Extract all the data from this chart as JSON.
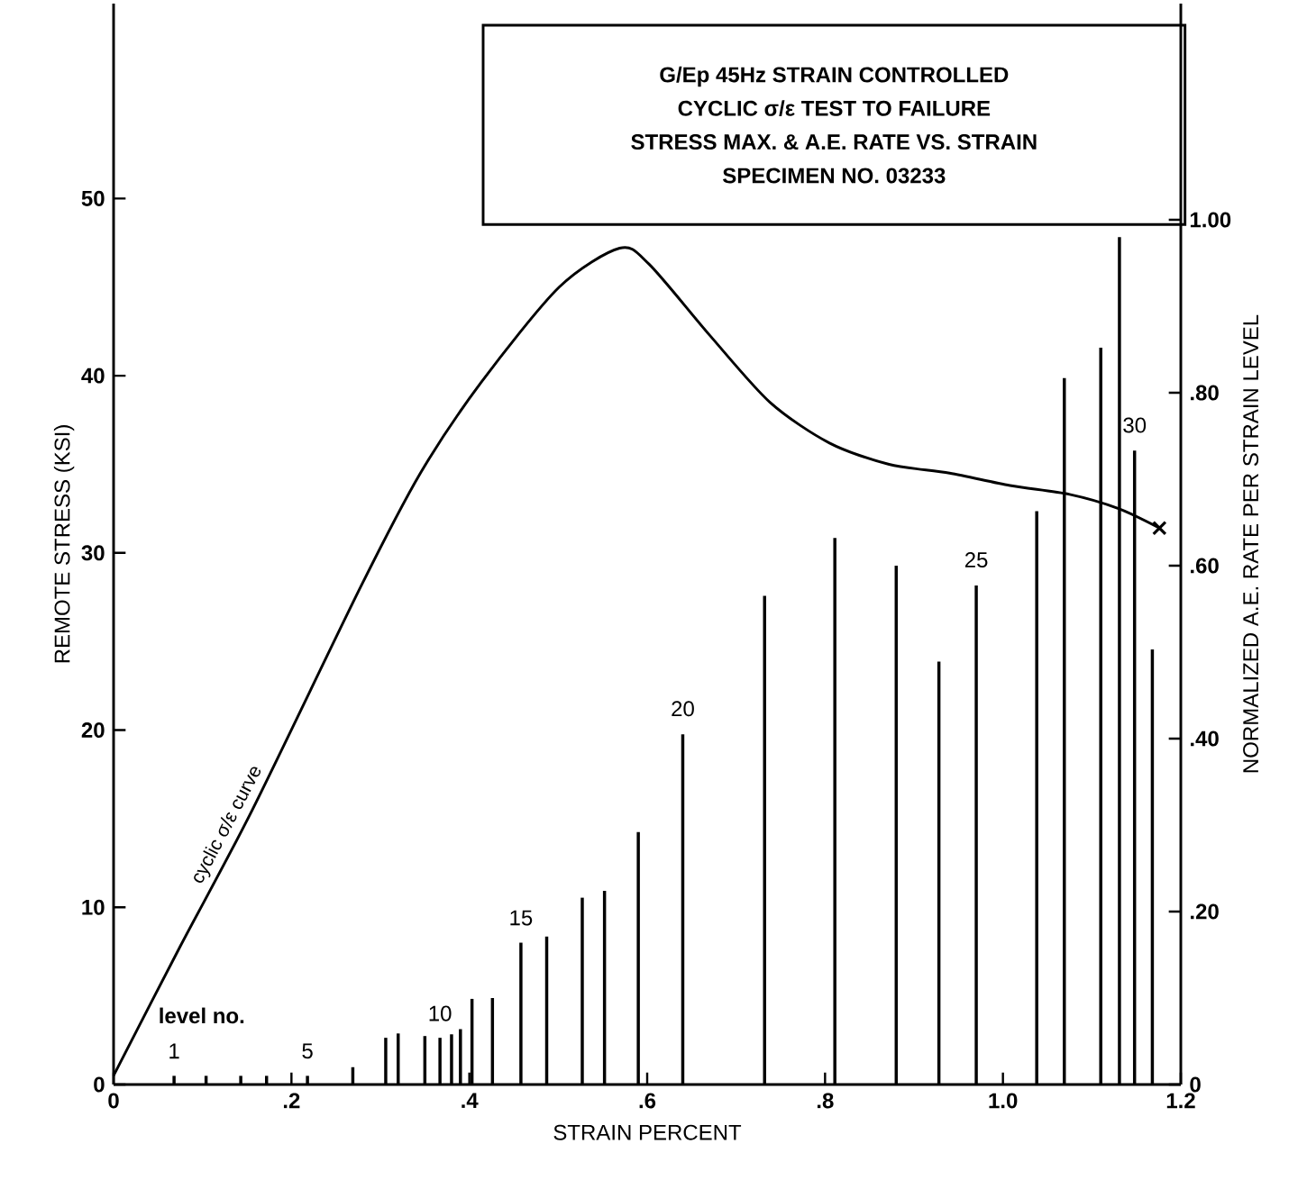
{
  "chart_data": {
    "type": "line",
    "title": "G/Ep 45Hz STRAIN CONTROLLED",
    "subtitle": "CYCLIC σ/ε TEST TO FAILURE",
    "annotations": [
      "STRESS MAX. & A.E. RATE VS. STRAIN",
      "SPECIMEN NO. 03233",
      "level no.",
      {
        "text": "1",
        "x": 0.068,
        "y": 0.49
      },
      {
        "text": "5",
        "x": 0.218,
        "y": 0.49
      },
      {
        "text": "10",
        "x": 0.367,
        "y": 2.6
      },
      {
        "text": "15",
        "x": 0.458,
        "y": 8.0
      },
      {
        "text": "20",
        "x": 0.64,
        "y": 19.8
      },
      {
        "text": "25",
        "x": 0.97,
        "y": 28.2
      },
      {
        "text": "30",
        "x": 1.148,
        "y": 35.8
      }
    ],
    "xlabel": "STRAIN PERCENT",
    "ylabel": "REMOTE STRESS (KSI)",
    "y2label": "NORMALIZED A.E. RATE PER STRAIN LEVEL",
    "xlim": [
      0,
      1.2
    ],
    "xticks": [
      0,
      {
        "value": 0.2,
        "label": ".2"
      },
      {
        "value": 0.4,
        "label": ".4"
      },
      {
        "value": 0.6,
        "label": ".6"
      },
      {
        "value": 0.8,
        "label": ".8"
      },
      {
        "value": 1.0,
        "label": "1.0"
      },
      {
        "value": 1.2,
        "label": "1.2"
      }
    ],
    "ylim": [
      0,
      61
    ],
    "yticks": [
      0,
      10,
      20,
      30,
      40,
      50
    ],
    "y2lim": [
      0,
      1.25
    ],
    "y2ticks": [
      0,
      {
        "value": 0.2,
        "label": ".20"
      },
      {
        "value": 0.4,
        "label": ".40"
      },
      {
        "value": 0.6,
        "label": ".60"
      },
      {
        "value": 0.8,
        "label": ".80"
      },
      {
        "value": 1.0,
        "label": "1.00"
      }
    ],
    "series": [
      {
        "name": "cyclic σ/ε curve",
        "color": "#000000",
        "marker": "none",
        "x": [
          0,
          0.075,
          0.156,
          0.278,
          0.345,
          0.413,
          0.501,
          0.569,
          0.602,
          0.67,
          0.738,
          0.805,
          0.872,
          0.94,
          1.008,
          1.075,
          1.13,
          1.176
        ],
        "values": [
          0.5,
          7.8,
          15.5,
          28.1,
          34.5,
          39.6,
          45.0,
          47.2,
          46.3,
          42.3,
          38.5,
          36.2,
          35.0,
          34.5,
          33.8,
          33.3,
          32.5,
          31.4
        ]
      },
      {
        "type": "scatter",
        "color": "#000000",
        "marker": "cross",
        "x": [
          1.176
        ],
        "values": [
          31.4
        ]
      },
      {
        "type": "bar",
        "axis": "y2",
        "color": "#000000",
        "x": [
          0.068,
          0.104,
          0.143,
          0.172,
          0.218,
          0.269,
          0.306,
          0.32,
          0.35,
          0.367,
          0.38,
          0.39,
          0.403,
          0.426,
          0.458,
          0.487,
          0.527,
          0.552,
          0.59,
          0.64,
          0.732,
          0.811,
          0.88,
          0.928,
          0.97,
          1.038,
          1.069,
          1.11,
          1.131,
          1.148,
          1.168
        ],
        "values": [
          0.01,
          0.01,
          0.01,
          0.01,
          0.01,
          0.02,
          0.054,
          0.059,
          0.056,
          0.054,
          0.058,
          0.064,
          0.099,
          0.1,
          0.164,
          0.171,
          0.216,
          0.224,
          0.292,
          0.405,
          0.565,
          0.632,
          0.6,
          0.489,
          0.577,
          0.663,
          0.817,
          0.852,
          0.98,
          0.733,
          0.503
        ]
      }
    ]
  }
}
